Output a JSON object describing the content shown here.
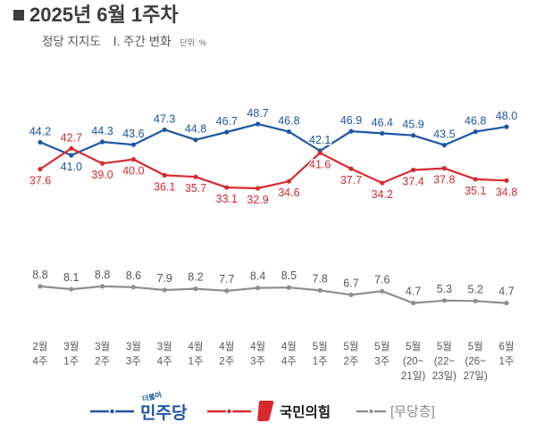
{
  "header": {
    "bullet_icon": "square-bullet-icon"
  },
  "chart_data": {
    "type": "line",
    "title": "2025년 6월 1주차",
    "subtitle": "정당 지지도",
    "section": "Ⅰ. 주간 변화",
    "unit": "단위: %",
    "categories": [
      [
        "2월",
        "4주"
      ],
      [
        "3월",
        "1주"
      ],
      [
        "3월",
        "2주"
      ],
      [
        "3월",
        "3주"
      ],
      [
        "3월",
        "4주"
      ],
      [
        "4월",
        "1주"
      ],
      [
        "4월",
        "2주"
      ],
      [
        "4월",
        "3주"
      ],
      [
        "4월",
        "4주"
      ],
      [
        "5월",
        "1주"
      ],
      [
        "5월",
        "2주"
      ],
      [
        "5월",
        "3주"
      ],
      [
        "5월",
        "(20~",
        "21일)"
      ],
      [
        "5월",
        "(22~",
        "23일)"
      ],
      [
        "5월",
        "(26~",
        "27일)"
      ],
      [
        "6월",
        "1주"
      ]
    ],
    "series": [
      {
        "name": "민주당",
        "logo_prefix": "더불어",
        "color": "#1d56a4",
        "label_color": "#1d56a4",
        "values": [
          44.2,
          41.0,
          44.3,
          43.6,
          47.3,
          44.8,
          46.7,
          48.7,
          46.8,
          42.1,
          46.9,
          46.4,
          45.9,
          43.5,
          46.8,
          48.0
        ]
      },
      {
        "name": "국민의힘",
        "logo_icon": "ppp-logo-icon",
        "color": "#d62a2f",
        "label_color": "#d62a2f",
        "values": [
          37.6,
          42.7,
          39.0,
          40.0,
          36.1,
          35.7,
          33.1,
          32.9,
          34.6,
          41.6,
          37.7,
          34.2,
          37.4,
          37.8,
          35.1,
          34.8
        ]
      },
      {
        "name": "[무당층]",
        "color": "#8e8e8e",
        "label_color": "#555555",
        "values": [
          8.8,
          8.1,
          8.8,
          8.6,
          7.9,
          8.2,
          7.7,
          8.4,
          8.5,
          7.8,
          6.7,
          7.6,
          4.7,
          5.3,
          5.2,
          4.7
        ]
      }
    ],
    "decimals": 1,
    "grid": false,
    "legend": "bottom"
  }
}
